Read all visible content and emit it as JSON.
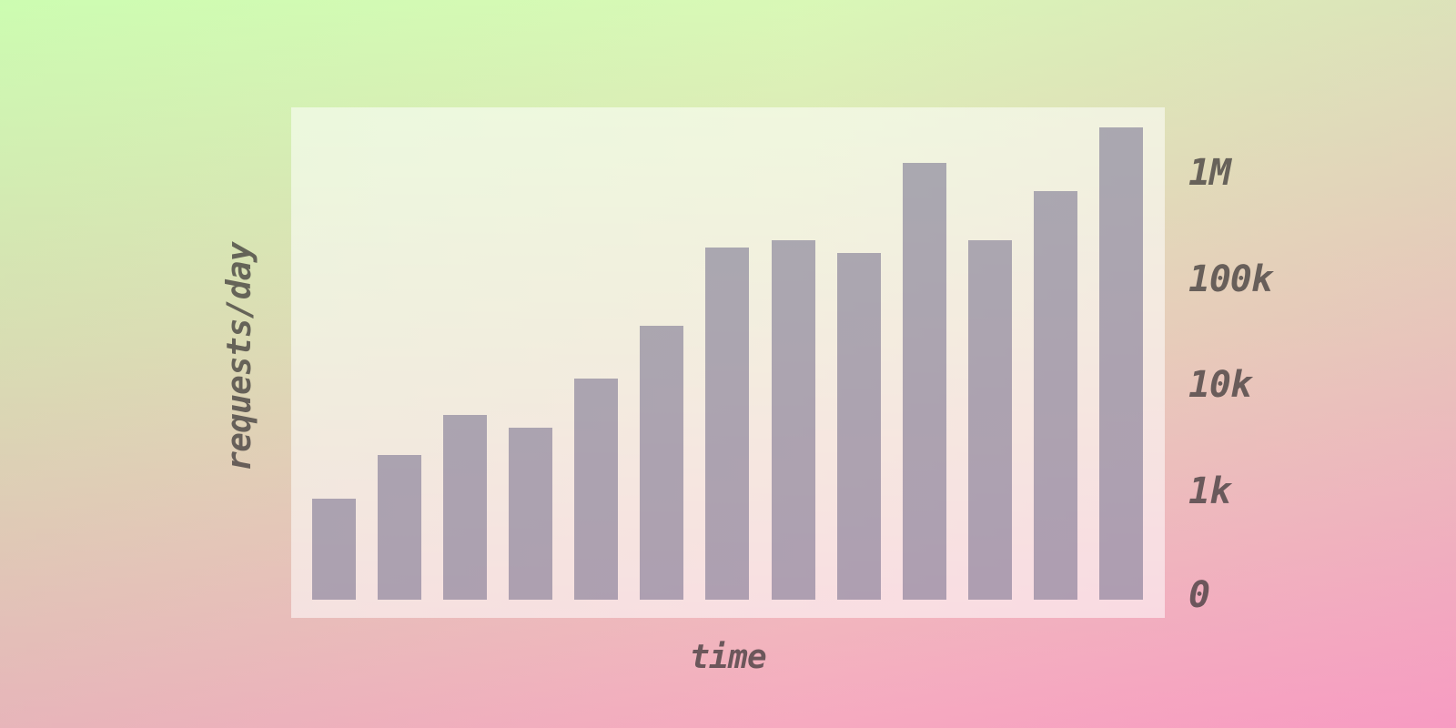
{
  "chart_data": {
    "type": "bar",
    "title": "",
    "xlabel": "time",
    "ylabel": "requests/day",
    "x": [
      1,
      2,
      3,
      4,
      5,
      6,
      7,
      8,
      9,
      10,
      11,
      12,
      13
    ],
    "x_tick_labels": [],
    "values": [
      850,
      2200,
      5200,
      4000,
      11500,
      36000,
      200000,
      230000,
      175000,
      1250000,
      230000,
      670000,
      2700000
    ],
    "y_scale": "log",
    "y_ticks": [
      {
        "label": "1M",
        "value": 1000000
      },
      {
        "label": "100k",
        "value": 100000
      },
      {
        "label": "10k",
        "value": 10000
      },
      {
        "label": "1k",
        "value": 1000
      },
      {
        "label": "0",
        "value": 0
      }
    ],
    "y_tick_side": "right",
    "ylim": [
      100,
      2750000
    ],
    "grid": false,
    "legend": null,
    "colors": {
      "bar": "rgba(106,100,132,0.52)",
      "panel": "rgba(255,255,255,0.55)",
      "text": "rgba(56,51,52,0.72)",
      "background_top_left": "#d5fdbb",
      "background_top_right": "#dfeabe",
      "background_bottom_left": "#f4b3c4",
      "background_bottom_right": "#fa9cc6"
    }
  }
}
